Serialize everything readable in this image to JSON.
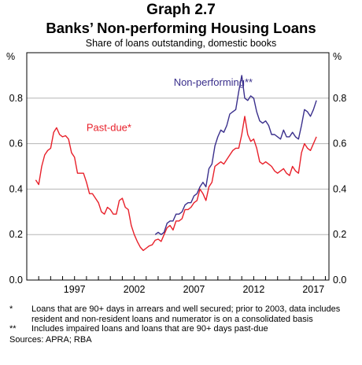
{
  "title": "Graph 2.7",
  "subtitle": "Banks’ Non-performing Housing Loans",
  "units_label": "Share of loans outstanding, domestic books",
  "axis_unit_left": "%",
  "axis_unit_right": "%",
  "notes": [
    {
      "mark": "*",
      "text": "Loans that are 90+ days in arrears and well secured; prior to 2003, data includes resident and non-resident loans and numerator is on a consolidated basis"
    },
    {
      "mark": "**",
      "text": "Includes impaired loans and loans that are 90+ days past-due"
    }
  ],
  "sources": "Sources: APRA; RBA",
  "colors": {
    "past_due": "#e8202a",
    "non_performing": "#3a2f8c",
    "grid": "#b5b5b5"
  },
  "chart_data": {
    "type": "line",
    "title": "Banks’ Non-performing Housing Loans",
    "subtitle": "Share of loans outstanding, domestic books",
    "ylabel": "%",
    "ylim": [
      0,
      1.0
    ],
    "yticks": [
      "0.0",
      "0.2",
      "0.4",
      "0.6",
      "0.8"
    ],
    "yticks_values": [
      0,
      0.2,
      0.4,
      0.6,
      0.8
    ],
    "xlim": [
      1993.0,
      2018.3
    ],
    "xticks": [
      "1997",
      "2002",
      "2007",
      "2012",
      "2017"
    ],
    "xticks_values": [
      1997,
      2002,
      2007,
      2012,
      2017
    ],
    "grid": true,
    "series": [
      {
        "name": "Past-due*",
        "color": "#e8202a",
        "label_position": [
          1998.0,
          0.655
        ],
        "points": [
          [
            1993.75,
            0.44
          ],
          [
            1994.0,
            0.42
          ],
          [
            1994.25,
            0.5
          ],
          [
            1994.5,
            0.55
          ],
          [
            1994.75,
            0.57
          ],
          [
            1995.0,
            0.58
          ],
          [
            1995.25,
            0.65
          ],
          [
            1995.5,
            0.67
          ],
          [
            1995.75,
            0.64
          ],
          [
            1996.0,
            0.63
          ],
          [
            1996.25,
            0.635
          ],
          [
            1996.5,
            0.62
          ],
          [
            1996.75,
            0.56
          ],
          [
            1997.0,
            0.54
          ],
          [
            1997.25,
            0.47
          ],
          [
            1997.5,
            0.47
          ],
          [
            1997.75,
            0.47
          ],
          [
            1998.0,
            0.43
          ],
          [
            1998.25,
            0.38
          ],
          [
            1998.5,
            0.38
          ],
          [
            1998.75,
            0.36
          ],
          [
            1999.0,
            0.34
          ],
          [
            1999.25,
            0.3
          ],
          [
            1999.5,
            0.29
          ],
          [
            1999.75,
            0.32
          ],
          [
            2000.0,
            0.31
          ],
          [
            2000.25,
            0.29
          ],
          [
            2000.5,
            0.29
          ],
          [
            2000.75,
            0.35
          ],
          [
            2001.0,
            0.36
          ],
          [
            2001.25,
            0.32
          ],
          [
            2001.5,
            0.31
          ],
          [
            2001.75,
            0.24
          ],
          [
            2002.0,
            0.2
          ],
          [
            2002.25,
            0.17
          ],
          [
            2002.5,
            0.145
          ],
          [
            2002.75,
            0.13
          ],
          [
            2003.0,
            0.14
          ],
          [
            2003.25,
            0.15
          ],
          [
            2003.5,
            0.155
          ],
          [
            2003.75,
            0.175
          ],
          [
            2004.0,
            0.18
          ],
          [
            2004.25,
            0.17
          ],
          [
            2004.5,
            0.2
          ],
          [
            2004.75,
            0.23
          ],
          [
            2005.0,
            0.24
          ],
          [
            2005.25,
            0.22
          ],
          [
            2005.5,
            0.26
          ],
          [
            2005.75,
            0.26
          ],
          [
            2006.0,
            0.27
          ],
          [
            2006.25,
            0.31
          ],
          [
            2006.5,
            0.31
          ],
          [
            2006.75,
            0.32
          ],
          [
            2007.0,
            0.34
          ],
          [
            2007.25,
            0.35
          ],
          [
            2007.5,
            0.4
          ],
          [
            2007.75,
            0.38
          ],
          [
            2008.0,
            0.35
          ],
          [
            2008.25,
            0.41
          ],
          [
            2008.5,
            0.43
          ],
          [
            2008.75,
            0.5
          ],
          [
            2009.0,
            0.51
          ],
          [
            2009.25,
            0.52
          ],
          [
            2009.5,
            0.51
          ],
          [
            2009.75,
            0.53
          ],
          [
            2010.0,
            0.55
          ],
          [
            2010.25,
            0.57
          ],
          [
            2010.5,
            0.58
          ],
          [
            2010.75,
            0.58
          ],
          [
            2011.0,
            0.64
          ],
          [
            2011.25,
            0.72
          ],
          [
            2011.5,
            0.64
          ],
          [
            2011.75,
            0.61
          ],
          [
            2012.0,
            0.62
          ],
          [
            2012.25,
            0.58
          ],
          [
            2012.5,
            0.52
          ],
          [
            2012.75,
            0.51
          ],
          [
            2013.0,
            0.52
          ],
          [
            2013.25,
            0.51
          ],
          [
            2013.5,
            0.5
          ],
          [
            2013.75,
            0.48
          ],
          [
            2014.0,
            0.47
          ],
          [
            2014.25,
            0.48
          ],
          [
            2014.5,
            0.49
          ],
          [
            2014.75,
            0.47
          ],
          [
            2015.0,
            0.46
          ],
          [
            2015.25,
            0.5
          ],
          [
            2015.5,
            0.48
          ],
          [
            2015.75,
            0.47
          ],
          [
            2016.0,
            0.56
          ],
          [
            2016.25,
            0.6
          ],
          [
            2016.5,
            0.58
          ],
          [
            2016.75,
            0.57
          ],
          [
            2017.0,
            0.6
          ],
          [
            2017.25,
            0.63
          ]
        ]
      },
      {
        "name": "Non-performing**",
        "color": "#3a2f8c",
        "label_position": [
          2005.3,
          0.855
        ],
        "points": [
          [
            2003.75,
            0.2
          ],
          [
            2004.0,
            0.21
          ],
          [
            2004.25,
            0.2
          ],
          [
            2004.5,
            0.21
          ],
          [
            2004.75,
            0.25
          ],
          [
            2005.0,
            0.26
          ],
          [
            2005.25,
            0.26
          ],
          [
            2005.5,
            0.29
          ],
          [
            2005.75,
            0.29
          ],
          [
            2006.0,
            0.3
          ],
          [
            2006.25,
            0.33
          ],
          [
            2006.5,
            0.34
          ],
          [
            2006.75,
            0.34
          ],
          [
            2007.0,
            0.37
          ],
          [
            2007.25,
            0.38
          ],
          [
            2007.5,
            0.41
          ],
          [
            2007.75,
            0.43
          ],
          [
            2008.0,
            0.41
          ],
          [
            2008.25,
            0.49
          ],
          [
            2008.5,
            0.51
          ],
          [
            2008.75,
            0.59
          ],
          [
            2009.0,
            0.63
          ],
          [
            2009.25,
            0.66
          ],
          [
            2009.5,
            0.65
          ],
          [
            2009.75,
            0.68
          ],
          [
            2010.0,
            0.73
          ],
          [
            2010.25,
            0.74
          ],
          [
            2010.5,
            0.75
          ],
          [
            2010.75,
            0.83
          ],
          [
            2011.0,
            0.9
          ],
          [
            2011.25,
            0.8
          ],
          [
            2011.5,
            0.79
          ],
          [
            2011.75,
            0.81
          ],
          [
            2012.0,
            0.8
          ],
          [
            2012.25,
            0.74
          ],
          [
            2012.5,
            0.7
          ],
          [
            2012.75,
            0.69
          ],
          [
            2013.0,
            0.7
          ],
          [
            2013.25,
            0.68
          ],
          [
            2013.5,
            0.64
          ],
          [
            2013.75,
            0.64
          ],
          [
            2014.0,
            0.63
          ],
          [
            2014.25,
            0.62
          ],
          [
            2014.5,
            0.66
          ],
          [
            2014.75,
            0.63
          ],
          [
            2015.0,
            0.63
          ],
          [
            2015.25,
            0.65
          ],
          [
            2015.5,
            0.63
          ],
          [
            2015.75,
            0.62
          ],
          [
            2016.0,
            0.68
          ],
          [
            2016.25,
            0.75
          ],
          [
            2016.5,
            0.74
          ],
          [
            2016.75,
            0.72
          ],
          [
            2017.0,
            0.75
          ],
          [
            2017.25,
            0.79
          ]
        ]
      }
    ]
  }
}
